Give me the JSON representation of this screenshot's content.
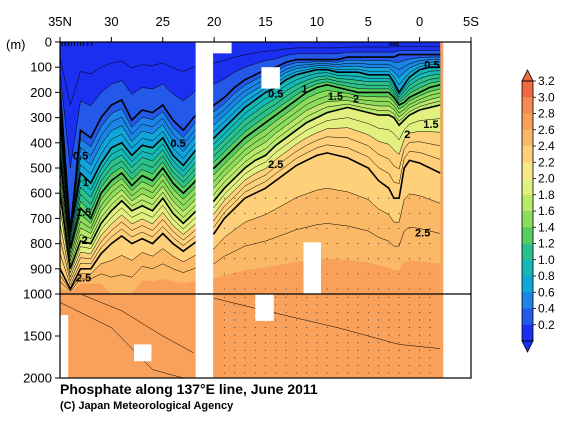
{
  "chart_data": {
    "type": "heatmap",
    "title": "Phosphate along 137°E line, June 2011",
    "credit": "(C) Japan Meteorological Agency",
    "ylabel": "(m)",
    "x_ticks": [
      {
        "value": 35,
        "label": "35N"
      },
      {
        "value": 30,
        "label": "30"
      },
      {
        "value": 25,
        "label": "25"
      },
      {
        "value": 20,
        "label": "20"
      },
      {
        "value": 15,
        "label": "15"
      },
      {
        "value": 10,
        "label": "10"
      },
      {
        "value": 5,
        "label": "5"
      },
      {
        "value": 0,
        "label": "0"
      },
      {
        "value": -5,
        "label": "5S"
      }
    ],
    "xlim": [
      35,
      -5
    ],
    "y_upper_ticks": [
      0,
      100,
      200,
      300,
      400,
      500,
      600,
      700,
      800,
      900,
      1000
    ],
    "y_lower_ticks": [
      1500,
      2000
    ],
    "ylim": [
      0,
      2000
    ],
    "colorbar": {
      "levels": [
        "3.2",
        "3.0",
        "2.8",
        "2.6",
        "2.4",
        "2.2",
        "2.0",
        "1.8",
        "1.6",
        "1.4",
        "1.2",
        "1.0",
        "0.8",
        "0.6",
        "0.4",
        "0.2"
      ],
      "colors": [
        "#f06a40",
        "#f7884f",
        "#f9a05a",
        "#fbb967",
        "#fdd079",
        "#f8e78a",
        "#e2f080",
        "#b9e86b",
        "#8ddc5c",
        "#58ce5e",
        "#2cc08a",
        "#14b8b5",
        "#12a5da",
        "#1b84e6",
        "#2458e8",
        "#1a2ff0"
      ]
    },
    "contour_labels": [
      {
        "text": "0.5",
        "lat": 33.0,
        "depth": 0.45
      },
      {
        "text": "0.5",
        "lat": 23.5,
        "depth": 0.4
      },
      {
        "text": "0.5",
        "lat": 14.0,
        "depth": 0.205
      },
      {
        "text": "0.5",
        "lat": -1.2,
        "depth": 0.09
      },
      {
        "text": "1",
        "lat": 11.2,
        "depth": 0.185
      },
      {
        "text": "1.5",
        "lat": 8.2,
        "depth": 0.215
      },
      {
        "text": "2",
        "lat": 6.2,
        "depth": 0.225
      },
      {
        "text": "1.5",
        "lat": -1.1,
        "depth": 0.325
      },
      {
        "text": "2",
        "lat": 1.2,
        "depth": 0.365
      },
      {
        "text": "1",
        "lat": 32.5,
        "depth": 0.555
      },
      {
        "text": "1.5",
        "lat": 32.7,
        "depth": 0.675
      },
      {
        "text": "2",
        "lat": 32.6,
        "depth": 0.785
      },
      {
        "text": "2.5",
        "lat": 32.7,
        "depth": 0.935
      },
      {
        "text": "2.5",
        "lat": 14.0,
        "depth": 0.485
      },
      {
        "text": "2.5",
        "lat": -0.3,
        "depth": 0.755
      }
    ],
    "sections": [
      {
        "lat": 35.0,
        "iso": [
          0.18,
          0.3,
          0.45,
          0.6,
          0.9
        ],
        "deep": [
          2.9,
          2.5,
          2.2
        ]
      },
      {
        "lat": 34.0,
        "iso": [
          0.75,
          0.72,
          0.82,
          0.9,
          0.98
        ],
        "deep": [
          2.9,
          2.7,
          2.4
        ]
      },
      {
        "lat": 33.0,
        "iso": [
          0.35,
          0.52,
          0.66,
          0.79,
          0.9
        ],
        "deep": [
          3.0,
          2.7,
          2.4
        ]
      },
      {
        "lat": 32.0,
        "iso": [
          0.38,
          0.56,
          0.7,
          0.8,
          0.9
        ],
        "deep": [
          3.0,
          2.8,
          2.5
        ]
      },
      {
        "lat": 31.0,
        "iso": [
          0.3,
          0.48,
          0.6,
          0.72,
          0.84
        ],
        "deep": [
          2.9,
          2.8,
          2.6
        ]
      },
      {
        "lat": 30.0,
        "iso": [
          0.25,
          0.42,
          0.55,
          0.67,
          0.8
        ],
        "deep": [
          2.8,
          2.8,
          2.7
        ]
      },
      {
        "lat": 29.0,
        "iso": [
          0.23,
          0.4,
          0.52,
          0.63,
          0.77
        ],
        "deep": [
          2.8,
          2.8,
          2.8
        ]
      },
      {
        "lat": 28.0,
        "iso": [
          0.31,
          0.45,
          0.57,
          0.67,
          0.8
        ],
        "deep": [
          2.8,
          2.8,
          2.8
        ]
      },
      {
        "lat": 27.0,
        "iso": [
          0.27,
          0.41,
          0.53,
          0.65,
          0.78
        ],
        "deep": [
          2.9,
          2.8,
          2.8
        ]
      },
      {
        "lat": 26.0,
        "iso": [
          0.28,
          0.42,
          0.55,
          0.67,
          0.8
        ],
        "deep": [
          2.9,
          2.8,
          2.8
        ]
      },
      {
        "lat": 25.0,
        "iso": [
          0.25,
          0.38,
          0.5,
          0.62,
          0.76
        ],
        "deep": [
          2.9,
          2.8,
          2.8
        ]
      },
      {
        "lat": 24.0,
        "iso": [
          0.31,
          0.45,
          0.56,
          0.68,
          0.8
        ],
        "deep": [
          2.9,
          2.8,
          2.8
        ]
      },
      {
        "lat": 23.0,
        "iso": [
          0.35,
          0.49,
          0.6,
          0.72,
          0.83
        ],
        "deep": [
          2.9,
          2.8,
          2.8
        ]
      },
      {
        "lat": 22.0,
        "iso": [
          0.3,
          0.44,
          0.56,
          0.68,
          0.8
        ],
        "deep": [
          2.9,
          2.8,
          2.8
        ]
      },
      {
        "lat": 21.0,
        "iso": [
          0.26,
          0.39,
          0.51,
          0.64,
          0.77
        ],
        "deep": [
          2.9,
          2.8,
          2.8
        ]
      },
      {
        "lat": 20.0,
        "iso": [
          0.25,
          0.38,
          0.5,
          0.63,
          0.76
        ],
        "deep": [
          2.9,
          2.8,
          2.8
        ]
      },
      {
        "lat": 19.0,
        "iso": [
          0.22,
          0.34,
          0.46,
          0.58,
          0.7
        ],
        "deep": [
          2.9,
          2.8,
          2.8
        ]
      },
      {
        "lat": 18.0,
        "iso": [
          0.18,
          0.3,
          0.42,
          0.54,
          0.66
        ],
        "deep": [
          2.9,
          2.8,
          2.8
        ]
      },
      {
        "lat": 17.0,
        "iso": [
          0.15,
          0.26,
          0.38,
          0.5,
          0.62
        ],
        "deep": [
          2.9,
          2.8,
          2.8
        ]
      },
      {
        "lat": 16.0,
        "iso": [
          0.13,
          0.23,
          0.35,
          0.47,
          0.6
        ],
        "deep": [
          2.9,
          2.8,
          2.8
        ]
      },
      {
        "lat": 15.0,
        "iso": [
          0.11,
          0.2,
          0.32,
          0.45,
          0.58
        ],
        "deep": [
          2.9,
          2.8,
          2.8
        ]
      },
      {
        "lat": 14.0,
        "iso": [
          0.1,
          0.18,
          0.29,
          0.41,
          0.55
        ],
        "deep": [
          2.9,
          2.8,
          2.8
        ]
      },
      {
        "lat": 13.0,
        "iso": [
          0.08,
          0.15,
          0.26,
          0.38,
          0.52
        ],
        "deep": [
          2.9,
          2.8,
          2.8
        ]
      },
      {
        "lat": 12.0,
        "iso": [
          0.07,
          0.13,
          0.23,
          0.35,
          0.49
        ],
        "deep": [
          2.9,
          2.8,
          2.8
        ]
      },
      {
        "lat": 11.0,
        "iso": [
          0.07,
          0.12,
          0.2,
          0.32,
          0.47
        ],
        "deep": [
          2.9,
          2.8,
          2.8
        ]
      },
      {
        "lat": 10.0,
        "iso": [
          0.07,
          0.11,
          0.18,
          0.3,
          0.45
        ],
        "deep": [
          2.9,
          2.8,
          2.8
        ]
      },
      {
        "lat": 9.0,
        "iso": [
          0.07,
          0.11,
          0.17,
          0.28,
          0.44
        ],
        "deep": [
          2.9,
          2.8,
          2.8
        ]
      },
      {
        "lat": 8.0,
        "iso": [
          0.07,
          0.12,
          0.18,
          0.27,
          0.45
        ],
        "deep": [
          2.9,
          2.8,
          2.8
        ]
      },
      {
        "lat": 7.0,
        "iso": [
          0.06,
          0.12,
          0.19,
          0.26,
          0.46
        ],
        "deep": [
          2.9,
          2.8,
          2.8
        ]
      },
      {
        "lat": 6.0,
        "iso": [
          0.06,
          0.12,
          0.2,
          0.27,
          0.48
        ],
        "deep": [
          2.9,
          2.8,
          2.8
        ]
      },
      {
        "lat": 5.0,
        "iso": [
          0.06,
          0.13,
          0.2,
          0.28,
          0.5
        ],
        "deep": [
          2.9,
          2.8,
          2.8
        ]
      },
      {
        "lat": 4.0,
        "iso": [
          0.06,
          0.13,
          0.2,
          0.29,
          0.55
        ],
        "deep": [
          2.9,
          2.8,
          2.8
        ]
      },
      {
        "lat": 3.0,
        "iso": [
          0.06,
          0.13,
          0.2,
          0.29,
          0.58
        ],
        "deep": [
          2.9,
          2.8,
          2.8
        ]
      },
      {
        "lat": 2.5,
        "iso": [
          0.06,
          0.16,
          0.22,
          0.3,
          0.62
        ],
        "deep": [
          2.9,
          2.8,
          2.8
        ]
      },
      {
        "lat": 2.0,
        "iso": [
          0.05,
          0.2,
          0.25,
          0.33,
          0.62
        ],
        "deep": [
          2.9,
          2.8,
          2.8
        ]
      },
      {
        "lat": 1.5,
        "iso": [
          0.05,
          0.17,
          0.24,
          0.31,
          0.5
        ],
        "deep": [
          2.9,
          2.8,
          2.8
        ]
      },
      {
        "lat": 1.0,
        "iso": [
          0.05,
          0.14,
          0.22,
          0.29,
          0.47
        ],
        "deep": [
          2.9,
          2.8,
          2.8
        ]
      },
      {
        "lat": 0.0,
        "iso": [
          0.05,
          0.11,
          0.2,
          0.27,
          0.48
        ],
        "deep": [
          2.9,
          2.8,
          2.8
        ]
      },
      {
        "lat": -1.0,
        "iso": [
          0.05,
          0.1,
          0.18,
          0.26,
          0.5
        ],
        "deep": [
          2.9,
          2.8,
          2.8
        ]
      },
      {
        "lat": -2.0,
        "iso": [
          0.05,
          0.1,
          0.17,
          0.25,
          0.52
        ],
        "deep": [
          2.9,
          2.8,
          2.8
        ]
      }
    ],
    "gaps": [
      {
        "lat_from": 21.8,
        "lat_to": 20.1,
        "depth_from": 0.0,
        "depth_to": 2000.0,
        "unit": "mix"
      },
      {
        "lat_from": 20.1,
        "lat_to": 18.3,
        "depth_from": 0.0,
        "depth_to": 0.045,
        "unit": "upper"
      },
      {
        "lat_from": 15.4,
        "lat_to": 13.6,
        "depth_from": 0.1,
        "depth_to": 0.185,
        "unit": "upper"
      },
      {
        "lat_from": 11.3,
        "lat_to": 9.6,
        "depth_from": 0.795,
        "depth_to": 1.0,
        "unit": "upper"
      },
      {
        "lat_from": 16.0,
        "lat_to": 14.2,
        "depth_from": 1000,
        "depth_to": 1320,
        "unit": "lower"
      },
      {
        "lat_from": 27.8,
        "lat_to": 26.1,
        "depth_from": 1600,
        "depth_to": 1800,
        "unit": "lower"
      },
      {
        "lat_from": 35.0,
        "lat_to": 34.2,
        "depth_from": 1250,
        "depth_to": 2000,
        "unit": "lower"
      },
      {
        "lat_from": -2.3,
        "lat_to": -5.0,
        "depth_from": 0.0,
        "depth_to": 2000,
        "unit": "mix"
      }
    ]
  }
}
